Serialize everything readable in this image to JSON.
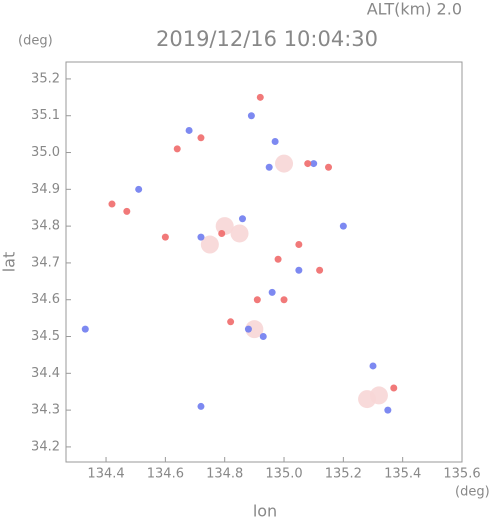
{
  "chart_data": {
    "type": "scatter",
    "title": "2019/12/16 10:04:30",
    "subtitle": "ALT(km) 2.0",
    "y_unit": "(deg)",
    "x_unit": "(deg)",
    "y_label": "lat",
    "x_label": "lon",
    "xlim": [
      134.265,
      135.6
    ],
    "ylim": [
      34.159,
      35.246
    ],
    "xticks": [
      134.4,
      134.6,
      134.8,
      {
        "value": 135,
        "label": "135.0"
      },
      135.2,
      135.4,
      135.6
    ],
    "yticks": [
      34.2,
      34.3,
      34.4,
      34.5,
      34.6,
      34.7,
      34.8,
      34.9,
      {
        "value": 35,
        "label": "35.0"
      },
      35.1,
      35.2
    ],
    "series": [
      {
        "color": "#f7d6d6",
        "x": [
          134.8,
          135.28,
          134.9,
          135.0,
          134.75,
          134.85,
          135.32
        ],
        "y": [
          34.8,
          34.33,
          34.52,
          34.97,
          34.75,
          34.78,
          34.34
        ]
      },
      {
        "color": "#6f7cf0",
        "x": [
          134.33,
          134.51,
          134.72,
          134.89,
          134.95,
          135.1,
          134.96,
          134.88,
          135.3,
          135.35,
          134.86,
          134.68,
          134.93,
          135.05,
          134.97,
          134.72,
          135.2
        ],
        "y": [
          34.52,
          34.9,
          34.77,
          35.1,
          34.96,
          34.97,
          34.62,
          34.52,
          34.42,
          34.3,
          34.82,
          35.06,
          34.5,
          34.68,
          35.03,
          34.31,
          34.8
        ]
      },
      {
        "color": "#f06a6a",
        "x": [
          134.42,
          134.47,
          134.64,
          134.72,
          134.92,
          134.79,
          135.08,
          135.15,
          135.37,
          134.82,
          135.0,
          134.98,
          134.6,
          134.91,
          135.05,
          135.12
        ],
        "y": [
          34.86,
          34.84,
          35.01,
          35.04,
          35.15,
          34.78,
          34.97,
          34.96,
          34.36,
          34.54,
          34.6,
          34.71,
          34.77,
          34.6,
          34.75,
          34.68
        ]
      }
    ]
  }
}
